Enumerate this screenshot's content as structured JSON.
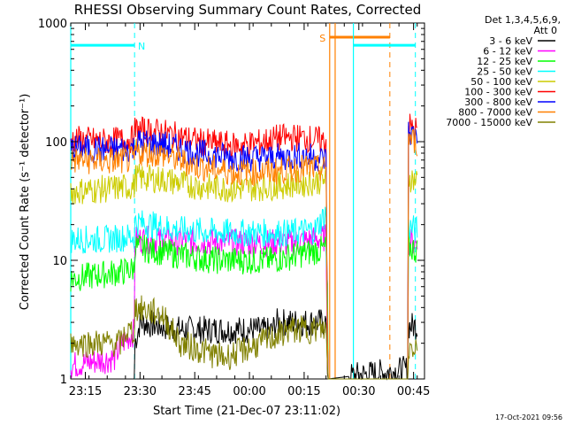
{
  "chart_data": {
    "type": "line",
    "title": "RHESSI Observing Summary Count Rates, Corrected",
    "xlabel": "Start Time (21-Dec-07 23:11:02)",
    "ylabel": "Corrected Count Rate (s⁻¹ detector⁻¹)",
    "yscale": "log",
    "ylim": [
      1,
      1000
    ],
    "x_tick_labels": [
      "23:15",
      "23:30",
      "23:45",
      "00:00",
      "00:15",
      "00:30",
      "00:45"
    ],
    "x_tick_minutes": [
      4,
      19,
      34,
      49,
      64,
      79,
      94
    ],
    "y_tick_labels": [
      "1",
      "10",
      "100",
      "1000"
    ],
    "y_tick_values": [
      1,
      10,
      100,
      1000
    ],
    "legend_header": [
      "Det 1,3,4,5,6,9,",
      "Att 0"
    ],
    "legend_position": "right",
    "series": [
      {
        "name": "3 - 6 keV",
        "color": "#000000",
        "points": [
          [
            0,
            1
          ],
          [
            17.5,
            1
          ],
          [
            17.6,
            2
          ],
          [
            19,
            3
          ],
          [
            30,
            2.6
          ],
          [
            50,
            2.6
          ],
          [
            55,
            2.5
          ],
          [
            56.5,
            3
          ],
          [
            70,
            3
          ],
          [
            70.5,
            1
          ],
          [
            92.5,
            1.2
          ],
          [
            92.6,
            2.8
          ],
          [
            95,
            2.8
          ]
        ]
      },
      {
        "name": "6 - 12 keV",
        "color": "#ff00ff",
        "points": [
          [
            0,
            1.3
          ],
          [
            12,
            1.5
          ],
          [
            14,
            2
          ],
          [
            17.5,
            2.5
          ],
          [
            17.6,
            15
          ],
          [
            30,
            14.5
          ],
          [
            45,
            14
          ],
          [
            60,
            14
          ],
          [
            70,
            15.5
          ],
          [
            70.5,
            1
          ],
          [
            92.5,
            1
          ],
          [
            92.6,
            14.5
          ],
          [
            95,
            14
          ]
        ]
      },
      {
        "name": "12 - 25 keV",
        "color": "#00ff00",
        "points": [
          [
            0,
            7
          ],
          [
            14,
            8
          ],
          [
            17.5,
            8.5
          ],
          [
            17.6,
            13
          ],
          [
            30,
            11
          ],
          [
            40,
            10
          ],
          [
            55,
            10
          ],
          [
            70,
            12.5
          ],
          [
            70.4,
            5
          ],
          [
            70.5,
            1
          ],
          [
            92.5,
            1
          ],
          [
            92.6,
            13
          ],
          [
            95,
            12
          ]
        ]
      },
      {
        "name": "25 - 50 keV",
        "color": "#00ffff",
        "points": [
          [
            0,
            15
          ],
          [
            10,
            15
          ],
          [
            17.5,
            16
          ],
          [
            17.6,
            21
          ],
          [
            30,
            18
          ],
          [
            45,
            17
          ],
          [
            60,
            17
          ],
          [
            67,
            18
          ],
          [
            70,
            25
          ],
          [
            70.5,
            1
          ],
          [
            92.5,
            1
          ],
          [
            92.6,
            19
          ],
          [
            95,
            18
          ]
        ]
      },
      {
        "name": "50 - 100 keV",
        "color": "#cccc00",
        "points": [
          [
            0,
            38
          ],
          [
            10,
            40
          ],
          [
            17.5,
            42
          ],
          [
            17.6,
            50
          ],
          [
            25,
            48
          ],
          [
            35,
            42
          ],
          [
            45,
            40
          ],
          [
            55,
            42
          ],
          [
            65,
            45
          ],
          [
            70,
            48
          ],
          [
            70.5,
            1
          ],
          [
            92.5,
            1
          ],
          [
            92.6,
            50
          ],
          [
            95,
            47
          ]
        ]
      },
      {
        "name": "100 - 300 keV",
        "color": "#ff0000",
        "points": [
          [
            0,
            105
          ],
          [
            10,
            100
          ],
          [
            17.5,
            105
          ],
          [
            17.6,
            125
          ],
          [
            25,
            120
          ],
          [
            35,
            100
          ],
          [
            45,
            92
          ],
          [
            52,
            98
          ],
          [
            57,
            108
          ],
          [
            64,
            108
          ],
          [
            70,
            100
          ],
          [
            70.5,
            1
          ],
          [
            92.5,
            1
          ],
          [
            92.6,
            135
          ],
          [
            95,
            125
          ]
        ]
      },
      {
        "name": "300 - 800 keV",
        "color": "#0000ff",
        "points": [
          [
            0,
            88
          ],
          [
            10,
            85
          ],
          [
            17.5,
            88
          ],
          [
            17.6,
            100
          ],
          [
            25,
            95
          ],
          [
            35,
            80
          ],
          [
            45,
            73
          ],
          [
            55,
            73
          ],
          [
            64,
            76
          ],
          [
            70,
            71
          ],
          [
            70.5,
            1
          ],
          [
            92.5,
            1
          ],
          [
            92.6,
            120
          ],
          [
            95,
            110
          ]
        ]
      },
      {
        "name": "800 - 7000 keV",
        "color": "#ff8000",
        "points": [
          [
            0,
            70
          ],
          [
            10,
            68
          ],
          [
            17.5,
            70
          ],
          [
            17.6,
            82
          ],
          [
            25,
            78
          ],
          [
            35,
            62
          ],
          [
            45,
            55
          ],
          [
            55,
            56
          ],
          [
            64,
            60
          ],
          [
            70,
            58
          ],
          [
            70.5,
            1
          ],
          [
            92.5,
            1
          ],
          [
            92.6,
            108
          ],
          [
            95,
            98
          ]
        ]
      },
      {
        "name": "7000 - 15000 keV",
        "color": "#808000",
        "points": [
          [
            0,
            2
          ],
          [
            14,
            2
          ],
          [
            15,
            2.5
          ],
          [
            17.5,
            2.5
          ],
          [
            17.6,
            4
          ],
          [
            25,
            3.5
          ],
          [
            30,
            2
          ],
          [
            42,
            1.5
          ],
          [
            52,
            2
          ],
          [
            60,
            2.6
          ],
          [
            70,
            2.6
          ],
          [
            70.5,
            1
          ],
          [
            92.5,
            1
          ],
          [
            92.6,
            1.8
          ],
          [
            95,
            2
          ]
        ]
      }
    ],
    "annotations": [
      {
        "label": "N",
        "color": "#00ffff",
        "y": 650,
        "x_start": 0,
        "x_end": 17.5,
        "dashed_at": 17.5
      },
      {
        "label": "S",
        "color": "#ff8000",
        "y": 760,
        "x_start": 71,
        "x_end": 87.5,
        "dashed_at": 87.5,
        "solid_at": [
          71,
          72.5
        ]
      },
      {
        "label": "",
        "color": "#00ffff",
        "y": 650,
        "x_start": 77.5,
        "x_end": 94.5,
        "dashed_at": 94.5,
        "solid_at": [
          77.5
        ]
      }
    ]
  },
  "footer": {
    "timestamp": "17-Oct-2021 09:56"
  }
}
